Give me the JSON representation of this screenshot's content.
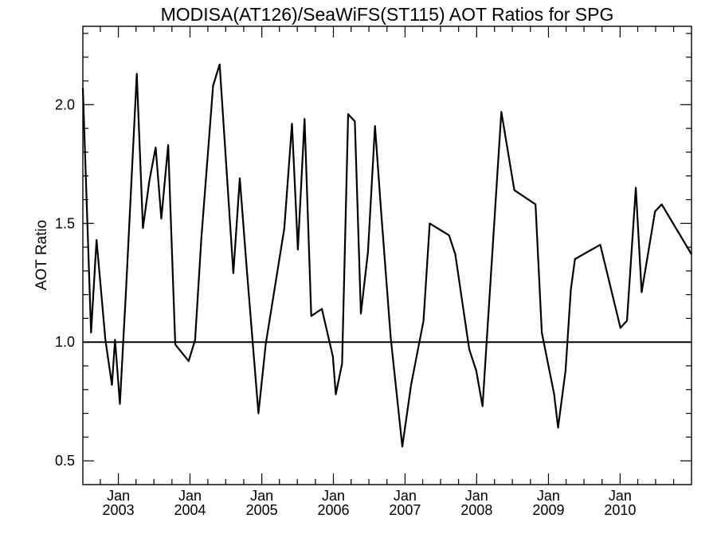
{
  "chart_data": {
    "type": "line",
    "title": "MODISA(AT126)/SeaWiFS(ST115)  AOT Ratios for SPG",
    "ylabel": "AOT Ratio",
    "xlabel": "",
    "ylim": [
      0.4,
      2.33
    ],
    "xlim": [
      "2002-07-04",
      "2010-12-31"
    ],
    "yticks": [
      0.5,
      1.0,
      1.5,
      2.0
    ],
    "ytick_labels": [
      "0.5",
      "1.0",
      "1.5",
      "2.0"
    ],
    "xticks": [
      {
        "month": "Jan",
        "year": "2003",
        "date": "2003-01-01"
      },
      {
        "month": "Jan",
        "year": "2004",
        "date": "2004-01-01"
      },
      {
        "month": "Jan",
        "year": "2005",
        "date": "2005-01-01"
      },
      {
        "month": "Jan",
        "year": "2006",
        "date": "2006-01-01"
      },
      {
        "month": "Jan",
        "year": "2007",
        "date": "2007-01-01"
      },
      {
        "month": "Jan",
        "year": "2008",
        "date": "2008-01-01"
      },
      {
        "month": "Jan",
        "year": "2009",
        "date": "2009-01-01"
      },
      {
        "month": "Jan",
        "year": "2010",
        "date": "2010-01-01"
      }
    ],
    "reference_line": 1.0,
    "grid": false,
    "series": [
      {
        "name": "",
        "points": [
          [
            "2002-07-04",
            2.07
          ],
          [
            "2002-08-15",
            1.04
          ],
          [
            "2002-09-12",
            1.43
          ],
          [
            "2002-10-27",
            1.01
          ],
          [
            "2002-11-29",
            0.82
          ],
          [
            "2002-12-15",
            1.01
          ],
          [
            "2003-01-09",
            0.74
          ],
          [
            "2003-02-09",
            1.22
          ],
          [
            "2003-04-05",
            2.13
          ],
          [
            "2003-05-06",
            1.48
          ],
          [
            "2003-06-08",
            1.68
          ],
          [
            "2003-07-10",
            1.82
          ],
          [
            "2003-08-08",
            1.52
          ],
          [
            "2003-09-12",
            1.83
          ],
          [
            "2003-10-18",
            0.99
          ],
          [
            "2003-12-25",
            0.92
          ],
          [
            "2004-01-27",
            1.01
          ],
          [
            "2004-02-28",
            1.44
          ],
          [
            "2004-04-28",
            2.08
          ],
          [
            "2004-05-31",
            2.17
          ],
          [
            "2004-08-09",
            1.29
          ],
          [
            "2004-09-11",
            1.69
          ],
          [
            "2004-10-16",
            1.31
          ],
          [
            "2004-12-15",
            0.7
          ],
          [
            "2005-01-21",
            0.99
          ],
          [
            "2005-04-26",
            1.48
          ],
          [
            "2005-06-04",
            1.92
          ],
          [
            "2005-07-04",
            1.39
          ],
          [
            "2005-08-07",
            1.94
          ],
          [
            "2005-09-10",
            1.11
          ],
          [
            "2005-11-03",
            1.14
          ],
          [
            "2005-12-29",
            0.94
          ],
          [
            "2006-01-13",
            0.78
          ],
          [
            "2006-02-14",
            0.91
          ],
          [
            "2006-03-17",
            1.96
          ],
          [
            "2006-04-20",
            1.93
          ],
          [
            "2006-05-21",
            1.12
          ],
          [
            "2006-06-26",
            1.38
          ],
          [
            "2006-08-01",
            1.91
          ],
          [
            "2006-09-01",
            1.55
          ],
          [
            "2006-10-20",
            1.02
          ],
          [
            "2006-12-18",
            0.56
          ],
          [
            "2007-02-01",
            0.82
          ],
          [
            "2007-04-05",
            1.09
          ],
          [
            "2007-05-07",
            1.5
          ],
          [
            "2007-08-13",
            1.45
          ],
          [
            "2007-09-14",
            1.37
          ],
          [
            "2007-11-24",
            0.97
          ],
          [
            "2007-12-30",
            0.88
          ],
          [
            "2008-01-31",
            0.73
          ],
          [
            "2008-05-06",
            1.97
          ],
          [
            "2008-07-11",
            1.64
          ],
          [
            "2008-10-27",
            1.58
          ],
          [
            "2008-11-28",
            1.04
          ],
          [
            "2009-01-30",
            0.78
          ],
          [
            "2009-02-19",
            0.64
          ],
          [
            "2009-03-29",
            0.88
          ],
          [
            "2009-04-25",
            1.22
          ],
          [
            "2009-05-16",
            1.35
          ],
          [
            "2009-09-22",
            1.41
          ],
          [
            "2010-01-03",
            1.06
          ],
          [
            "2010-02-05",
            1.09
          ],
          [
            "2010-03-22",
            1.65
          ],
          [
            "2010-04-21",
            1.21
          ],
          [
            "2010-06-28",
            1.55
          ],
          [
            "2010-08-01",
            1.58
          ],
          [
            "2010-12-31",
            1.37
          ]
        ]
      }
    ]
  }
}
